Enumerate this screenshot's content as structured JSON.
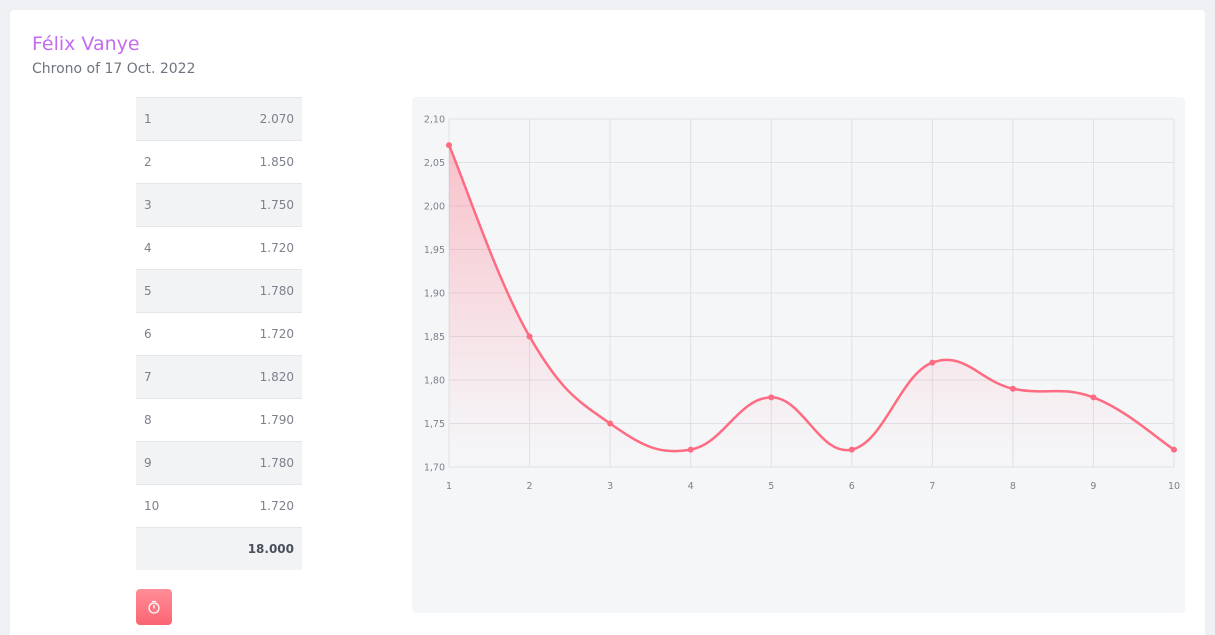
{
  "header": {
    "name": "Félix Vanye",
    "subtitle": "Chrono of 17 Oct. 2022"
  },
  "laps": [
    {
      "lap": "1",
      "time": "2.070"
    },
    {
      "lap": "2",
      "time": "1.850"
    },
    {
      "lap": "3",
      "time": "1.750"
    },
    {
      "lap": "4",
      "time": "1.720"
    },
    {
      "lap": "5",
      "time": "1.780"
    },
    {
      "lap": "6",
      "time": "1.720"
    },
    {
      "lap": "7",
      "time": "1.820"
    },
    {
      "lap": "8",
      "time": "1.790"
    },
    {
      "lap": "9",
      "time": "1.780"
    },
    {
      "lap": "10",
      "time": "1.720"
    }
  ],
  "total": "18.000",
  "timer_button": {
    "icon": "stopwatch-icon"
  },
  "colors": {
    "line": "#ff6b81",
    "accent_name": "#c46bf0"
  },
  "chart_data": {
    "type": "area",
    "x": [
      1,
      2,
      3,
      4,
      5,
      6,
      7,
      8,
      9,
      10
    ],
    "values": [
      2.07,
      1.85,
      1.75,
      1.72,
      1.78,
      1.72,
      1.82,
      1.79,
      1.78,
      1.72
    ],
    "ylim": [
      1.7,
      2.1
    ],
    "yticks": [
      "1,70",
      "1,75",
      "1,80",
      "1,85",
      "1,90",
      "1,95",
      "2,00",
      "2,05",
      "2,10"
    ],
    "xticks": [
      "1",
      "2",
      "3",
      "4",
      "5",
      "6",
      "7",
      "8",
      "9",
      "10"
    ],
    "grid": true,
    "legend": "none",
    "title": "",
    "xlabel": "",
    "ylabel": ""
  }
}
